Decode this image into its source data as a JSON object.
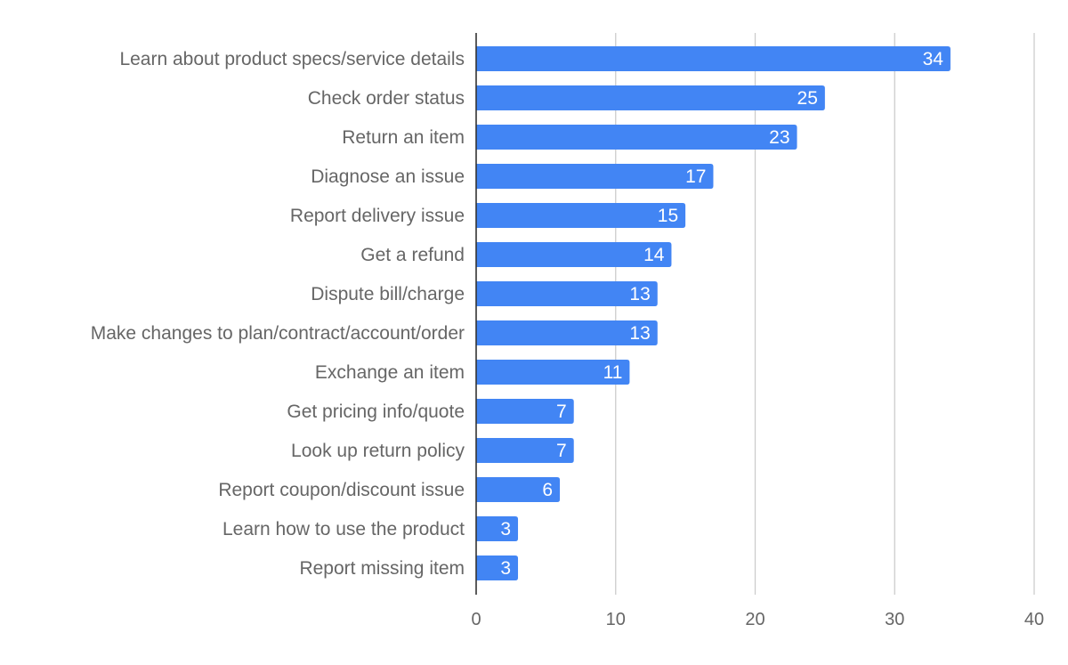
{
  "chart_data": {
    "type": "bar",
    "orientation": "horizontal",
    "categories": [
      "Learn about product specs/service details",
      "Check order status",
      "Return an item",
      "Diagnose an issue",
      "Report delivery issue",
      "Get a refund",
      "Dispute bill/charge",
      "Make changes to plan/contract/account/order",
      "Exchange an item",
      "Get pricing info/quote",
      "Look up return policy",
      "Report coupon/discount issue",
      "Learn how to use the product",
      "Report missing item"
    ],
    "values": [
      34,
      25,
      23,
      17,
      15,
      14,
      13,
      13,
      11,
      7,
      7,
      6,
      3,
      3
    ],
    "xlim": [
      0,
      40
    ],
    "xticks": [
      "0",
      "10",
      "20",
      "30",
      "40"
    ],
    "title": "",
    "xlabel": "",
    "ylabel": "",
    "grid": true,
    "data_labels": true,
    "colors": {
      "bar": "#4285f4",
      "label": "#666666",
      "grid": "#cccccc",
      "axis": "#333333",
      "data_label": "#ffffff"
    }
  }
}
